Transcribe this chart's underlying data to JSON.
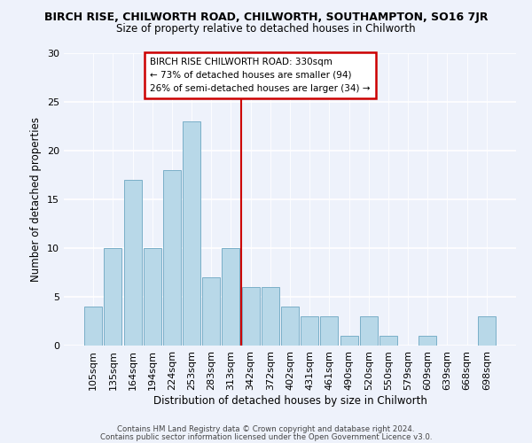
{
  "title": "BIRCH RISE, CHILWORTH ROAD, CHILWORTH, SOUTHAMPTON, SO16 7JR",
  "subtitle": "Size of property relative to detached houses in Chilworth",
  "xlabel": "Distribution of detached houses by size in Chilworth",
  "ylabel": "Number of detached properties",
  "bar_color": "#b8d8e8",
  "bar_edge_color": "#7aafc8",
  "categories": [
    "105sqm",
    "135sqm",
    "164sqm",
    "194sqm",
    "224sqm",
    "253sqm",
    "283sqm",
    "313sqm",
    "342sqm",
    "372sqm",
    "402sqm",
    "431sqm",
    "461sqm",
    "490sqm",
    "520sqm",
    "550sqm",
    "579sqm",
    "609sqm",
    "639sqm",
    "668sqm",
    "698sqm"
  ],
  "values": [
    4,
    10,
    17,
    10,
    18,
    23,
    7,
    10,
    6,
    6,
    4,
    3,
    3,
    1,
    3,
    1,
    0,
    1,
    0,
    0,
    3
  ],
  "ylim": [
    0,
    30
  ],
  "yticks": [
    0,
    5,
    10,
    15,
    20,
    25,
    30
  ],
  "vline_x": 7.5,
  "vline_color": "#cc0000",
  "legend_title": "BIRCH RISE CHILWORTH ROAD: 330sqm",
  "legend_line1": "← 73% of detached houses are smaller (94)",
  "legend_line2": "26% of semi-detached houses are larger (34) →",
  "legend_box_facecolor": "#ffffff",
  "legend_box_edgecolor": "#cc0000",
  "footer1": "Contains HM Land Registry data © Crown copyright and database right 2024.",
  "footer2": "Contains public sector information licensed under the Open Government Licence v3.0.",
  "background_color": "#eef2fb"
}
